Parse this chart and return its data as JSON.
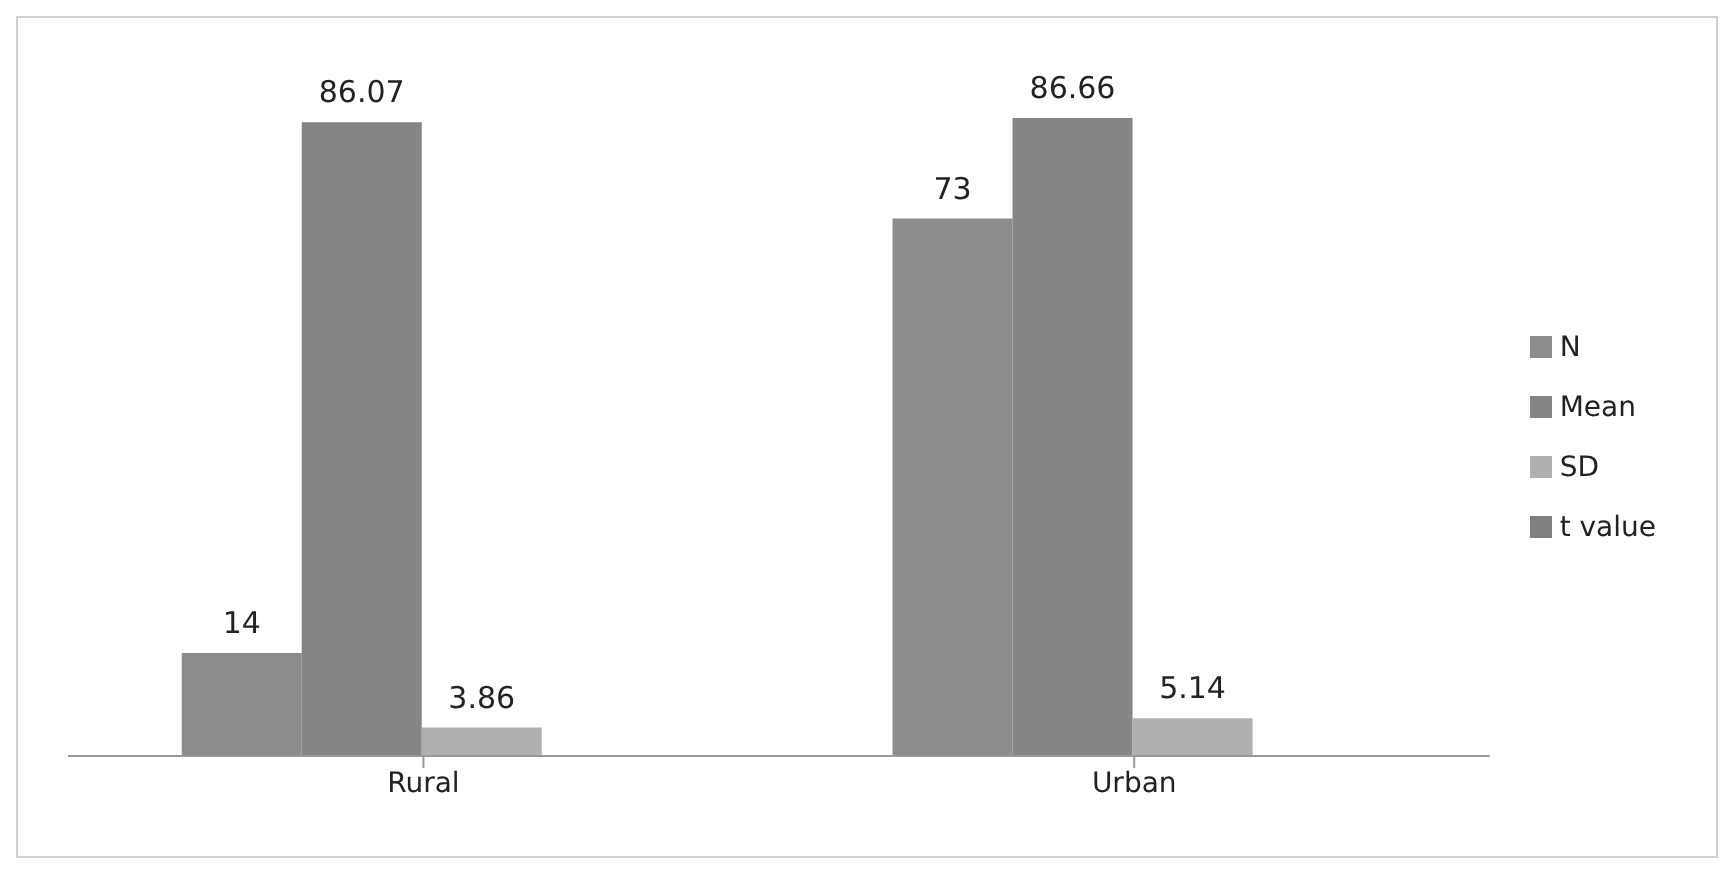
{
  "chart_data": {
    "type": "bar",
    "categories": [
      "Rural",
      "Urban"
    ],
    "series": [
      {
        "name": "N",
        "color": "#8a8c8e",
        "values": [
          14,
          73
        ]
      },
      {
        "name": "Mean",
        "color": "#838587",
        "values": [
          86.07,
          86.66
        ]
      },
      {
        "name": "SD",
        "color": "#aeafb1",
        "values": [
          3.86,
          5.14
        ]
      },
      {
        "name": "t value",
        "color": "#7d7f81",
        "values": [
          null,
          null
        ]
      }
    ],
    "data_labels": true,
    "legend": "right",
    "grid": false
  }
}
